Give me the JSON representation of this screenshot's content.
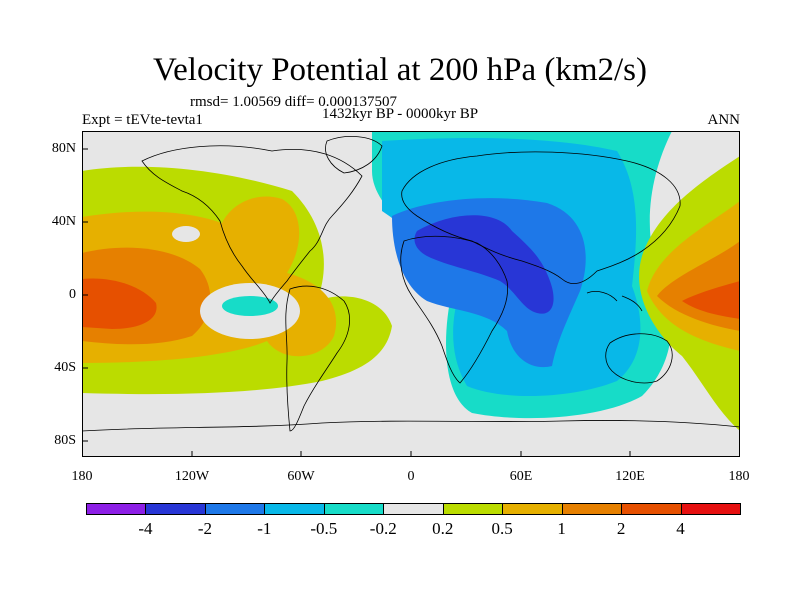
{
  "title": "Velocity Potential at 200 hPa (km2/s)",
  "stats_line": "rmsd= 1.00569 diff= 0.000137507",
  "period_line": "1432kyr BP - 0000kyr BP",
  "experiment_label": "Expt = tEVte-tevta1",
  "season_label": "ANN",
  "map": {
    "y_ticks": [
      "80N",
      "40N",
      "0",
      "40S",
      "80S"
    ],
    "x_ticks": [
      "180",
      "120W",
      "60W",
      "0",
      "60E",
      "120E",
      "180"
    ]
  },
  "colorbar": {
    "labels": [
      "-4",
      "-2",
      "-1",
      "-0.5",
      "-0.2",
      "0.2",
      "0.5",
      "1",
      "2",
      "4"
    ],
    "colors": [
      "#8d1fe6",
      "#2836d6",
      "#1e78e8",
      "#08b8e8",
      "#17dcc8",
      "#e6e6e6",
      "#bbdc00",
      "#e6b000",
      "#e68000",
      "#e65000",
      "#e61010"
    ]
  },
  "palette": {
    "ocean_bg": "#e6e6e6",
    "blue_dark": "#2836d6",
    "blue_mid": "#1e78e8",
    "blue_light": "#08b8e8",
    "cyan": "#17dcc8",
    "yellow_green": "#bbdc00",
    "gold": "#e6b000",
    "orange": "#e68000",
    "red_orange": "#e65000"
  }
}
